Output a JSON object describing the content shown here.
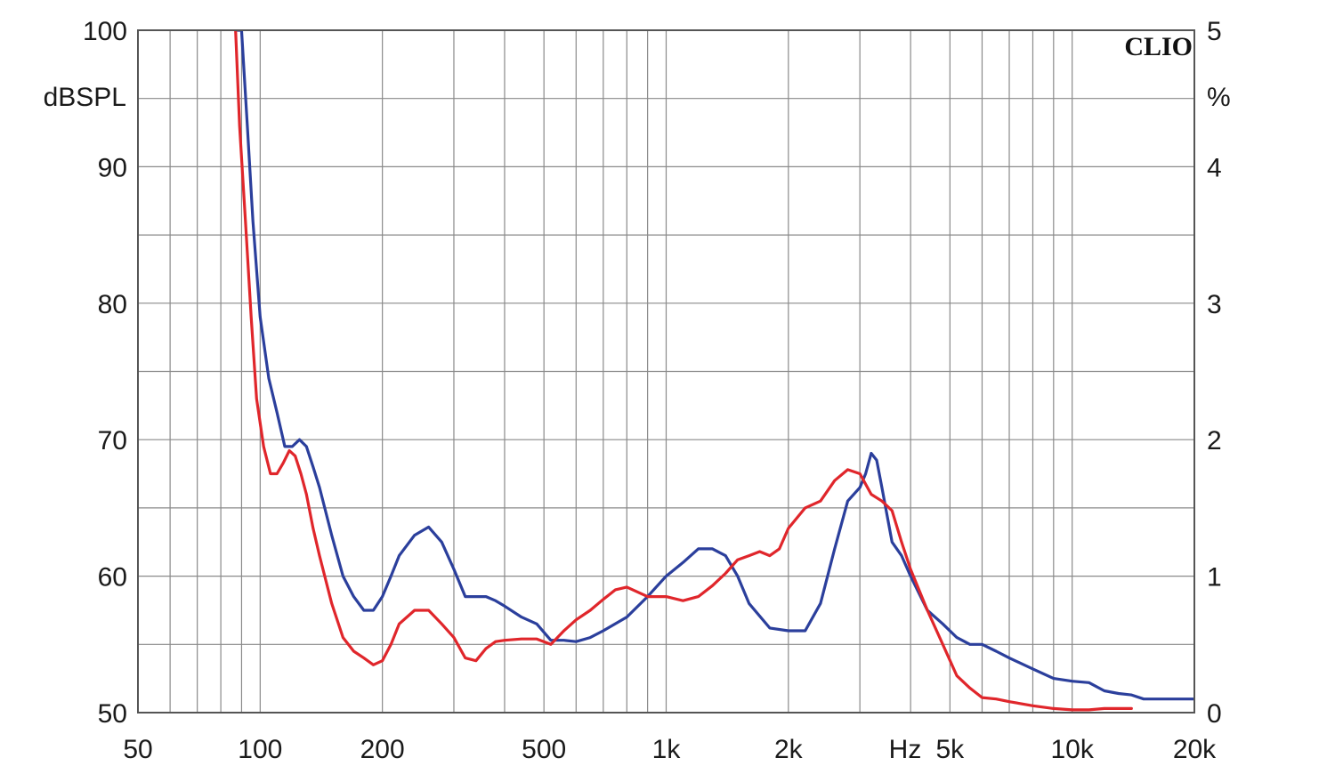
{
  "chart_data": {
    "type": "line",
    "title": "",
    "brand": "CLIO",
    "x_scale": "log",
    "xlim": [
      50,
      20000
    ],
    "xticks": [
      {
        "value": 50,
        "label": "50"
      },
      {
        "value": 100,
        "label": "100"
      },
      {
        "value": 200,
        "label": "200"
      },
      {
        "value": 500,
        "label": "500"
      },
      {
        "value": 1000,
        "label": "1k"
      },
      {
        "value": 2000,
        "label": "2k"
      },
      {
        "value": 5000,
        "label": "5k"
      },
      {
        "value": 10000,
        "label": "10k"
      },
      {
        "value": 20000,
        "label": "20k"
      }
    ],
    "xlabel": "Hz",
    "ylabel_left": "dBSPL",
    "ylim_left": [
      50,
      100
    ],
    "yticks_left": [
      {
        "value": 50,
        "label": "50"
      },
      {
        "value": 60,
        "label": "60"
      },
      {
        "value": 70,
        "label": "70"
      },
      {
        "value": 80,
        "label": "80"
      },
      {
        "value": 90,
        "label": "90"
      },
      {
        "value": 100,
        "label": "100"
      }
    ],
    "ylabel_right": "%",
    "ylim_right": [
      0,
      5
    ],
    "yticks_right": [
      {
        "value": 0,
        "label": "0"
      },
      {
        "value": 1,
        "label": "1"
      },
      {
        "value": 2,
        "label": "2"
      },
      {
        "value": 3,
        "label": "3"
      },
      {
        "value": 4,
        "label": "4"
      },
      {
        "value": 5,
        "label": "5"
      }
    ],
    "grid": true,
    "series": [
      {
        "color": "#2b3f9c",
        "x": [
          88,
          90,
          93,
          96,
          100,
          105,
          110,
          115,
          120,
          125,
          130,
          135,
          140,
          150,
          160,
          170,
          180,
          190,
          200,
          210,
          220,
          240,
          260,
          280,
          300,
          320,
          340,
          360,
          380,
          400,
          440,
          480,
          520,
          560,
          600,
          650,
          700,
          800,
          900,
          1000,
          1100,
          1200,
          1300,
          1400,
          1500,
          1600,
          1800,
          2000,
          2200,
          2400,
          2600,
          2800,
          3000,
          3100,
          3200,
          3300,
          3400,
          3600,
          3800,
          4000,
          4400,
          4800,
          5200,
          5600,
          6000,
          6500,
          7000,
          8000,
          9000,
          10000,
          11000,
          12000,
          13000,
          14000,
          15000,
          16000,
          18000,
          20000
        ],
        "y": [
          100,
          100,
          93,
          86,
          79,
          74.5,
          72,
          69.5,
          69.5,
          70,
          69.5,
          68,
          66.5,
          63,
          60,
          58.5,
          57.5,
          57.5,
          58.5,
          60,
          61.5,
          63,
          63.6,
          62.5,
          60.5,
          58.5,
          58.5,
          58.5,
          58.2,
          57.8,
          57,
          56.5,
          55.3,
          55.3,
          55.2,
          55.5,
          56,
          57,
          58.5,
          60,
          61,
          62,
          62,
          61.5,
          60,
          58,
          56.2,
          56,
          56,
          58,
          62,
          65.5,
          66.5,
          67.5,
          69,
          68.5,
          66.5,
          62.5,
          61.5,
          60,
          57.5,
          56.5,
          55.5,
          55,
          55,
          54.5,
          54,
          53.2,
          52.5,
          52.3,
          52.2,
          51.6,
          51.4,
          51.3,
          51,
          51,
          51,
          51
        ]
      },
      {
        "color": "#e0262b",
        "x": [
          87,
          89,
          92,
          95,
          98,
          102,
          106,
          110,
          114,
          118,
          122,
          126,
          130,
          135,
          140,
          150,
          160,
          170,
          180,
          190,
          200,
          210,
          220,
          240,
          260,
          280,
          300,
          320,
          340,
          360,
          380,
          400,
          440,
          480,
          520,
          560,
          600,
          650,
          700,
          750,
          800,
          900,
          1000,
          1100,
          1200,
          1300,
          1400,
          1500,
          1600,
          1700,
          1800,
          1900,
          2000,
          2200,
          2400,
          2600,
          2800,
          3000,
          3200,
          3400,
          3600,
          3800,
          4000,
          4400,
          4800,
          5200,
          5600,
          6000,
          6500,
          7000,
          8000,
          9000,
          10000,
          11000,
          12000,
          13000,
          14000
        ],
        "y": [
          100,
          93,
          86,
          79,
          73,
          69.5,
          67.5,
          67.5,
          68.3,
          69.2,
          68.8,
          67.5,
          66,
          63.5,
          61.5,
          58,
          55.5,
          54.5,
          54,
          53.5,
          53.8,
          55,
          56.5,
          57.5,
          57.5,
          56.5,
          55.5,
          54,
          53.8,
          54.7,
          55.2,
          55.3,
          55.4,
          55.4,
          55,
          56,
          56.8,
          57.5,
          58.3,
          59,
          59.2,
          58.5,
          58.5,
          58.2,
          58.5,
          59.3,
          60.2,
          61.2,
          61.5,
          61.8,
          61.5,
          62,
          63.5,
          65,
          65.5,
          67,
          67.8,
          67.5,
          66,
          65.5,
          64.8,
          62.5,
          60.5,
          57.5,
          55,
          52.7,
          51.8,
          51.1,
          51,
          50.8,
          50.5,
          50.3,
          50.2,
          50.2,
          50.3,
          50.3,
          50.3
        ]
      }
    ]
  },
  "colors": {
    "frame": "#555555",
    "grid": "#8a8a8a",
    "background": "#ffffff"
  }
}
